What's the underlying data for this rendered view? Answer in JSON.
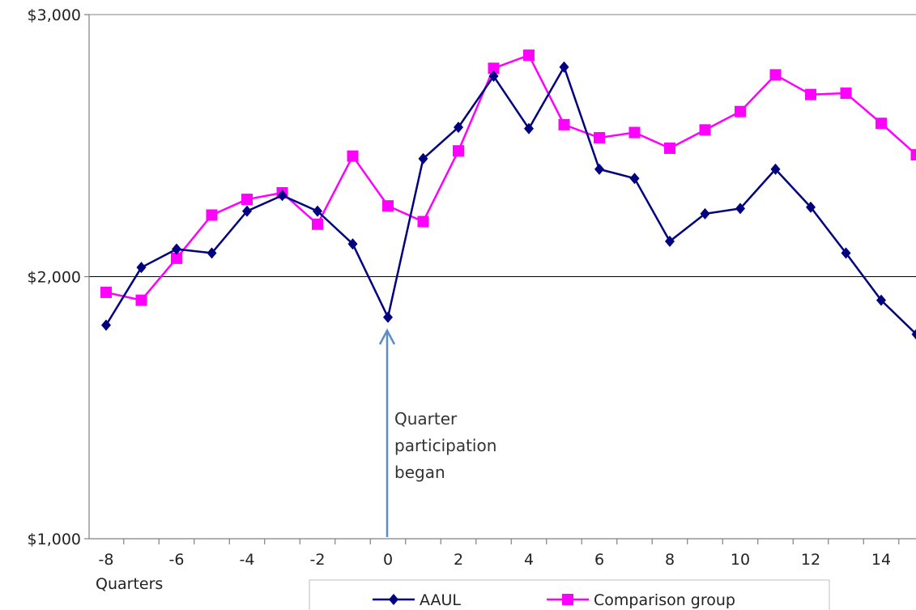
{
  "chart_data": {
    "type": "line",
    "x": [
      -8,
      -7,
      -6,
      -5,
      -4,
      -3,
      -2,
      -1,
      0,
      1,
      2,
      3,
      4,
      5,
      6,
      7,
      8,
      9,
      10,
      11,
      12,
      13,
      14,
      15
    ],
    "x_tick_labels": [
      "-8",
      "-6",
      "-4",
      "-2",
      "0",
      "2",
      "4",
      "6",
      "8",
      "10",
      "12",
      "14"
    ],
    "x_tick_values": [
      -8,
      -6,
      -4,
      -2,
      0,
      2,
      4,
      6,
      8,
      10,
      12,
      14
    ],
    "xlabel": "Quarters",
    "ylim": [
      1000,
      3000
    ],
    "y_ticks": [
      {
        "value": 1000,
        "label": "$1,000"
      },
      {
        "value": 2000,
        "label": "$2,000"
      },
      {
        "value": 3000,
        "label": "$3,000"
      }
    ],
    "gridlines": [
      2000
    ],
    "series": [
      {
        "name": "AAUL",
        "color": "#000080",
        "marker": "diamond",
        "values": [
          1815,
          2035,
          2105,
          2090,
          2250,
          2310,
          2250,
          2125,
          1845,
          2450,
          2570,
          2765,
          2565,
          2800,
          2410,
          2375,
          2135,
          2240,
          2260,
          2410,
          2265,
          2090,
          1910,
          1780
        ]
      },
      {
        "name": "Comparison group",
        "color": "#FF00FF",
        "marker": "square",
        "values": [
          1940,
          1910,
          2070,
          2235,
          2295,
          2320,
          2200,
          2460,
          2270,
          2210,
          2480,
          2795,
          2845,
          2580,
          2530,
          2550,
          2490,
          2560,
          2630,
          2770,
          2695,
          2700,
          2585,
          2465
        ]
      }
    ],
    "annotation": {
      "lines": [
        "Quarter",
        "participation",
        "began"
      ],
      "at_x": 0,
      "arrow_color": "#5B8DC9"
    },
    "legend": {
      "placement": "bottom-right"
    }
  }
}
